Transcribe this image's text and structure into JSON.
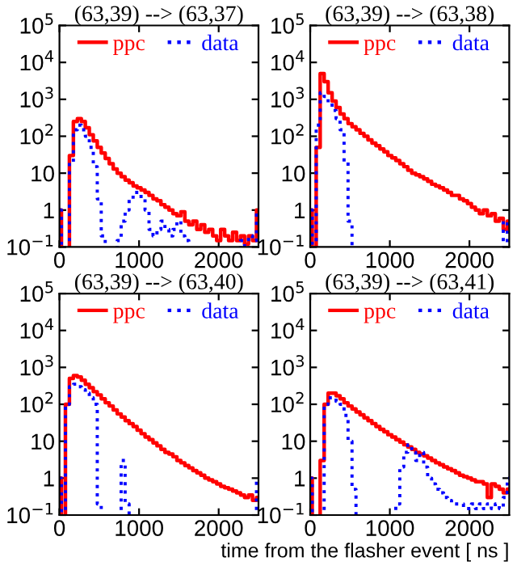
{
  "chart_data": [
    {
      "type": "step",
      "title": "(63,39) --> (63,37)",
      "log": "y",
      "legend": "top",
      "x": [
        0,
        50,
        100,
        150,
        200,
        250,
        300,
        350,
        400,
        450,
        500,
        550,
        600,
        650,
        700,
        750,
        800,
        850,
        900,
        950,
        1000,
        1050,
        1100,
        1150,
        1200,
        1250,
        1300,
        1350,
        1400,
        1450,
        1500,
        1550,
        1600,
        1650,
        1700,
        1750,
        1800,
        1850,
        1900,
        1950,
        2000,
        2050,
        2100,
        2150,
        2200,
        2250,
        2300,
        2350,
        2400,
        2450,
        2500
      ],
      "xlim": [
        0,
        2500
      ],
      "xticks": [
        0,
        1000,
        2000
      ],
      "ylim": [
        0.1,
        100000
      ],
      "yticks": [
        {
          "value": 0.1,
          "label": "10$^{−1}$"
        },
        1,
        10,
        {
          "value": 100,
          "label": "10$^{2}$"
        },
        {
          "value": 1000,
          "label": "10$^{3}$"
        },
        {
          "value": 10000,
          "label": "10$^{4}$"
        },
        {
          "value": 100000,
          "label": "10$^{5}$"
        }
      ],
      "series": [
        {
          "name": "ppc",
          "color": "#ff0000",
          "line_style": "solid",
          "values": [
            1,
            null,
            null,
            30,
            250,
            300,
            250,
            170,
            110,
            75,
            50,
            35,
            25,
            18,
            13,
            10,
            8,
            6.5,
            5.5,
            4.5,
            4,
            3.5,
            3,
            2.5,
            2,
            1.8,
            1.4,
            1.2,
            1,
            0.8,
            0.7,
            0.9,
            0.5,
            0.4,
            0.5,
            0.3,
            0.4,
            0.25,
            0.3,
            0.2,
            0.15,
            0.3,
            0.2,
            0.15,
            0.25,
            0.15,
            0.2,
            0.12,
            0.2,
            0.15,
            1
          ]
        },
        {
          "name": "data",
          "color": "#0000ff",
          "line_style": "dotted",
          "values": [
            1,
            null,
            null,
            20,
            150,
            200,
            150,
            100,
            50,
            15,
            2,
            0.2,
            null,
            null,
            null,
            0.15,
            0.5,
            1,
            2,
            3,
            3,
            2,
            1,
            0.3,
            0.2,
            0.3,
            0.5,
            0.3,
            0.2,
            0.3,
            0.5,
            0.2,
            0.15,
            null,
            null,
            null,
            null,
            null,
            null,
            null,
            null,
            null,
            null,
            null,
            null,
            null,
            0.15,
            null,
            0.2,
            0.15,
            1
          ]
        }
      ]
    },
    {
      "type": "step",
      "title": "(63,39) --> (63,38)",
      "log": "y",
      "legend": "top",
      "x": [
        0,
        50,
        100,
        150,
        200,
        250,
        300,
        350,
        400,
        450,
        500,
        550,
        600,
        650,
        700,
        750,
        800,
        850,
        900,
        950,
        1000,
        1050,
        1100,
        1150,
        1200,
        1250,
        1300,
        1350,
        1400,
        1450,
        1500,
        1550,
        1600,
        1650,
        1700,
        1750,
        1800,
        1850,
        1900,
        1950,
        2000,
        2050,
        2100,
        2150,
        2200,
        2250,
        2300,
        2350,
        2400,
        2450,
        2500
      ],
      "xlim": [
        0,
        2500
      ],
      "xticks": [
        0,
        1000,
        2000
      ],
      "ylim": [
        0.1,
        100000
      ],
      "yticks": [
        {
          "value": 0.1,
          "label": "10$^{−1}$"
        },
        1,
        10,
        {
          "value": 100,
          "label": "10$^{2}$"
        },
        {
          "value": 1000,
          "label": "10$^{3}$"
        },
        {
          "value": 10000,
          "label": "10$^{4}$"
        },
        {
          "value": 100000,
          "label": "10$^{5}$"
        }
      ],
      "series": [
        {
          "name": "ppc",
          "color": "#ff0000",
          "line_style": "solid",
          "values": [
            1,
            null,
            50,
            5000,
            3000,
            1500,
            900,
            600,
            400,
            300,
            220,
            180,
            150,
            120,
            100,
            80,
            65,
            55,
            45,
            38,
            30,
            26,
            22,
            18,
            15,
            12,
            10,
            9,
            8,
            7,
            6,
            5,
            4.5,
            4,
            3.5,
            3,
            2.5,
            2.5,
            2,
            1.8,
            1.5,
            1.2,
            1,
            0.8,
            1,
            0.7,
            0.8,
            0.5,
            0.6,
            0.3,
            0.5
          ]
        },
        {
          "name": "data",
          "color": "#0000ff",
          "line_style": "dotted",
          "values": [
            1,
            null,
            200,
            1500,
            1200,
            800,
            500,
            300,
            150,
            20,
            0.5,
            null,
            null,
            null,
            null,
            null,
            null,
            null,
            null,
            null,
            null,
            null,
            null,
            null,
            null,
            null,
            null,
            null,
            null,
            null,
            null,
            null,
            null,
            null,
            null,
            null,
            null,
            null,
            null,
            null,
            null,
            null,
            null,
            null,
            null,
            null,
            null,
            null,
            null,
            0.5,
            null
          ]
        }
      ]
    },
    {
      "type": "step",
      "title": "(63,39) --> (63,40)",
      "log": "y",
      "legend": "top",
      "x": [
        0,
        50,
        100,
        150,
        200,
        250,
        300,
        350,
        400,
        450,
        500,
        550,
        600,
        650,
        700,
        750,
        800,
        850,
        900,
        950,
        1000,
        1050,
        1100,
        1150,
        1200,
        1250,
        1300,
        1350,
        1400,
        1450,
        1500,
        1550,
        1600,
        1650,
        1700,
        1750,
        1800,
        1850,
        1900,
        1950,
        2000,
        2050,
        2100,
        2150,
        2200,
        2250,
        2300,
        2350,
        2400,
        2450,
        2500
      ],
      "xlim": [
        0,
        2500
      ],
      "xticks": [
        0,
        1000,
        2000
      ],
      "ylim": [
        0.1,
        100000
      ],
      "yticks": [
        {
          "value": 0.1,
          "label": "10$^{−1}$"
        },
        1,
        10,
        {
          "value": 100,
          "label": "10$^{2}$"
        },
        {
          "value": 1000,
          "label": "10$^{3}$"
        },
        {
          "value": 10000,
          "label": "10$^{4}$"
        },
        {
          "value": 100000,
          "label": "10$^{5}$"
        }
      ],
      "series": [
        {
          "name": "ppc",
          "color": "#ff0000",
          "line_style": "solid",
          "values": [
            1,
            null,
            100,
            500,
            600,
            550,
            450,
            350,
            280,
            220,
            180,
            140,
            110,
            90,
            70,
            55,
            45,
            36,
            30,
            25,
            20,
            16,
            13,
            11,
            9,
            7.5,
            6,
            5,
            4.5,
            3.8,
            3,
            2.6,
            2.2,
            1.9,
            1.6,
            1.4,
            1.2,
            1,
            0.9,
            0.8,
            0.7,
            0.6,
            0.55,
            0.5,
            0.45,
            0.4,
            0.35,
            0.3,
            0.35,
            0.25,
            0.3
          ]
        },
        {
          "name": "data",
          "color": "#0000ff",
          "line_style": "dotted",
          "values": [
            1,
            null,
            100,
            300,
            350,
            300,
            250,
            200,
            150,
            100,
            0.2,
            null,
            null,
            null,
            null,
            null,
            3,
            0.2,
            null,
            null,
            null,
            null,
            null,
            null,
            null,
            null,
            null,
            null,
            null,
            null,
            null,
            null,
            null,
            null,
            null,
            null,
            null,
            null,
            null,
            null,
            null,
            null,
            null,
            null,
            null,
            null,
            null,
            null,
            null,
            null,
            1
          ]
        }
      ]
    },
    {
      "type": "step",
      "title": "(63,39) --> (63,41)",
      "xlabel": "time from the flasher event [ ns ]",
      "log": "y",
      "legend": "top",
      "x": [
        0,
        50,
        100,
        150,
        200,
        250,
        300,
        350,
        400,
        450,
        500,
        550,
        600,
        650,
        700,
        750,
        800,
        850,
        900,
        950,
        1000,
        1050,
        1100,
        1150,
        1200,
        1250,
        1300,
        1350,
        1400,
        1450,
        1500,
        1550,
        1600,
        1650,
        1700,
        1750,
        1800,
        1850,
        1900,
        1950,
        2000,
        2050,
        2100,
        2150,
        2200,
        2250,
        2300,
        2350,
        2400,
        2450,
        2500
      ],
      "xlim": [
        0,
        2500
      ],
      "xticks": [
        0,
        1000,
        2000
      ],
      "ylim": [
        0.1,
        100000
      ],
      "yticks": [
        {
          "value": 0.1,
          "label": "10$^{−1}$"
        },
        1,
        10,
        {
          "value": 100,
          "label": "10$^{2}$"
        },
        {
          "value": 1000,
          "label": "10$^{3}$"
        },
        {
          "value": 10000,
          "label": "10$^{4}$"
        },
        {
          "value": 100000,
          "label": "10$^{5}$"
        }
      ],
      "series": [
        {
          "name": "ppc",
          "color": "#ff0000",
          "line_style": "solid",
          "values": [
            1,
            null,
            null,
            3,
            100,
            200,
            200,
            170,
            140,
            110,
            90,
            75,
            62,
            52,
            43,
            36,
            30,
            25,
            21,
            18,
            15,
            13,
            11,
            9.5,
            8,
            7,
            6,
            5,
            4.5,
            4,
            3.5,
            3,
            2.6,
            2.3,
            2,
            1.8,
            1.6,
            1.4,
            1.2,
            1.1,
            1,
            0.9,
            0.8,
            0.8,
            0.7,
            0.3,
            0.7,
            0.6,
            0.5,
            0.4,
            0.5
          ]
        },
        {
          "name": "data",
          "color": "#0000ff",
          "line_style": "dotted",
          "values": [
            1,
            null,
            null,
            null,
            100,
            150,
            150,
            120,
            100,
            50,
            10,
            0.5,
            null,
            null,
            null,
            null,
            null,
            null,
            null,
            null,
            null,
            null,
            0.2,
            2,
            5,
            8,
            5,
            3,
            5,
            2,
            1,
            0.7,
            0.5,
            0.4,
            0.3,
            0.25,
            0.2,
            0.2,
            0.2,
            0.15,
            0.15,
            0.2,
            0.15,
            0.2,
            0.15,
            0.2,
            0.15,
            0.2,
            0.15,
            0.3,
            1
          ]
        }
      ]
    }
  ]
}
